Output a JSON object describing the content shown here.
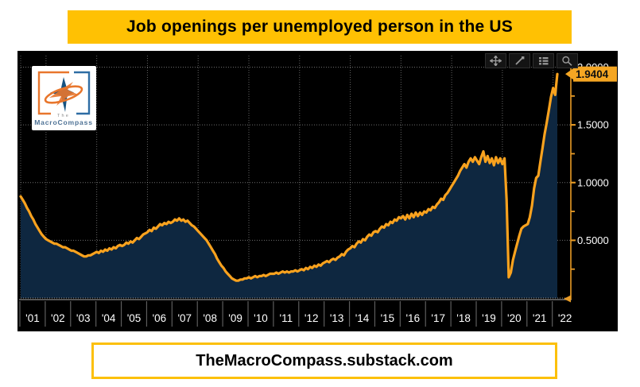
{
  "title_banner": {
    "text": "Job openings per unemployed person in the US"
  },
  "footer_banner": {
    "text": "TheMacroCompass.substack.com"
  },
  "logo": {
    "line1": "The",
    "line2": "MacroCompass"
  },
  "toolbar": {
    "icons": [
      "pan",
      "annotate",
      "legend",
      "zoom"
    ]
  },
  "last_value_badge": {
    "text": "1.9404"
  },
  "colors": {
    "banner_gold": "#FFC103",
    "footer_border_gold": "#FCC00A",
    "chart_background": "#000000",
    "line_orange": "#F9A21E",
    "area_fill_navy": "#0E2740",
    "axis_orange": "#E89B25",
    "badge_background": "#F5A623",
    "grid_gray": "#c8c8c8",
    "tick_label_white": "#ffffff"
  },
  "chart_data": {
    "type": "area",
    "title": "Job openings per unemployed person in the US",
    "xlabel": "",
    "ylabel": "",
    "x_start_year": 2001,
    "points_per_year": 12,
    "x_range": [
      2001,
      2022.7
    ],
    "y_range": [
      0,
      2.1
    ],
    "grid": {
      "horizontal_values": [
        0.5,
        1.0,
        1.5,
        2.0
      ],
      "vertical_years": [
        2002,
        2004,
        2006,
        2008,
        2010,
        2012,
        2014,
        2016,
        2018,
        2020,
        2022
      ],
      "style": "dotted"
    },
    "legend_position": "none",
    "y_ticks": [
      {
        "value": 0.5,
        "label": "0.5000"
      },
      {
        "value": 1.0,
        "label": "1.0000"
      },
      {
        "value": 1.5,
        "label": "1.5000"
      },
      {
        "value": 2.0,
        "label": "2.0000"
      }
    ],
    "y_minor_tick_step": 0.25,
    "x_axis_labels": [
      "'01",
      "'02",
      "'03",
      "'04",
      "'05",
      "'06",
      "'07",
      "'08",
      "'09",
      "'10",
      "'11",
      "'12",
      "'13",
      "'14",
      "'15",
      "'16",
      "'17",
      "'18",
      "'19",
      "'20",
      "'21",
      "'22"
    ],
    "last_value": 1.9404,
    "values": [
      0.88,
      0.85,
      0.82,
      0.78,
      0.75,
      0.71,
      0.68,
      0.64,
      0.61,
      0.58,
      0.55,
      0.53,
      0.51,
      0.5,
      0.49,
      0.48,
      0.47,
      0.47,
      0.46,
      0.45,
      0.44,
      0.44,
      0.43,
      0.42,
      0.41,
      0.41,
      0.4,
      0.39,
      0.38,
      0.37,
      0.36,
      0.36,
      0.37,
      0.37,
      0.38,
      0.39,
      0.4,
      0.39,
      0.41,
      0.4,
      0.42,
      0.41,
      0.43,
      0.42,
      0.44,
      0.43,
      0.45,
      0.46,
      0.45,
      0.46,
      0.48,
      0.47,
      0.49,
      0.48,
      0.5,
      0.52,
      0.51,
      0.53,
      0.55,
      0.56,
      0.57,
      0.59,
      0.58,
      0.61,
      0.6,
      0.62,
      0.64,
      0.63,
      0.65,
      0.64,
      0.66,
      0.65,
      0.66,
      0.68,
      0.67,
      0.69,
      0.67,
      0.68,
      0.66,
      0.67,
      0.65,
      0.63,
      0.62,
      0.6,
      0.58,
      0.56,
      0.54,
      0.52,
      0.5,
      0.47,
      0.44,
      0.41,
      0.38,
      0.34,
      0.31,
      0.28,
      0.26,
      0.23,
      0.21,
      0.19,
      0.17,
      0.16,
      0.15,
      0.15,
      0.16,
      0.16,
      0.17,
      0.17,
      0.18,
      0.17,
      0.18,
      0.19,
      0.18,
      0.19,
      0.19,
      0.2,
      0.19,
      0.2,
      0.21,
      0.21,
      0.21,
      0.22,
      0.21,
      0.22,
      0.23,
      0.22,
      0.23,
      0.22,
      0.23,
      0.23,
      0.24,
      0.23,
      0.24,
      0.25,
      0.24,
      0.26,
      0.25,
      0.27,
      0.26,
      0.28,
      0.27,
      0.29,
      0.28,
      0.3,
      0.31,
      0.32,
      0.31,
      0.33,
      0.34,
      0.33,
      0.35,
      0.36,
      0.38,
      0.37,
      0.4,
      0.42,
      0.43,
      0.45,
      0.44,
      0.47,
      0.49,
      0.48,
      0.51,
      0.5,
      0.53,
      0.55,
      0.54,
      0.57,
      0.58,
      0.57,
      0.6,
      0.62,
      0.61,
      0.64,
      0.63,
      0.66,
      0.65,
      0.68,
      0.67,
      0.7,
      0.69,
      0.71,
      0.68,
      0.72,
      0.69,
      0.73,
      0.7,
      0.74,
      0.71,
      0.74,
      0.72,
      0.75,
      0.74,
      0.77,
      0.76,
      0.79,
      0.78,
      0.81,
      0.83,
      0.86,
      0.85,
      0.89,
      0.91,
      0.94,
      0.97,
      1.0,
      1.03,
      1.06,
      1.1,
      1.13,
      1.16,
      1.13,
      1.18,
      1.21,
      1.18,
      1.22,
      1.19,
      1.16,
      1.22,
      1.27,
      1.18,
      1.23,
      1.17,
      1.21,
      1.15,
      1.22,
      1.17,
      1.21,
      1.16,
      1.21,
      0.85,
      0.18,
      0.22,
      0.33,
      0.4,
      0.47,
      0.54,
      0.6,
      0.62,
      0.63,
      0.64,
      0.7,
      0.8,
      0.95,
      1.04,
      1.06,
      1.18,
      1.3,
      1.42,
      1.52,
      1.63,
      1.74,
      1.82,
      1.76,
      1.9404
    ]
  }
}
